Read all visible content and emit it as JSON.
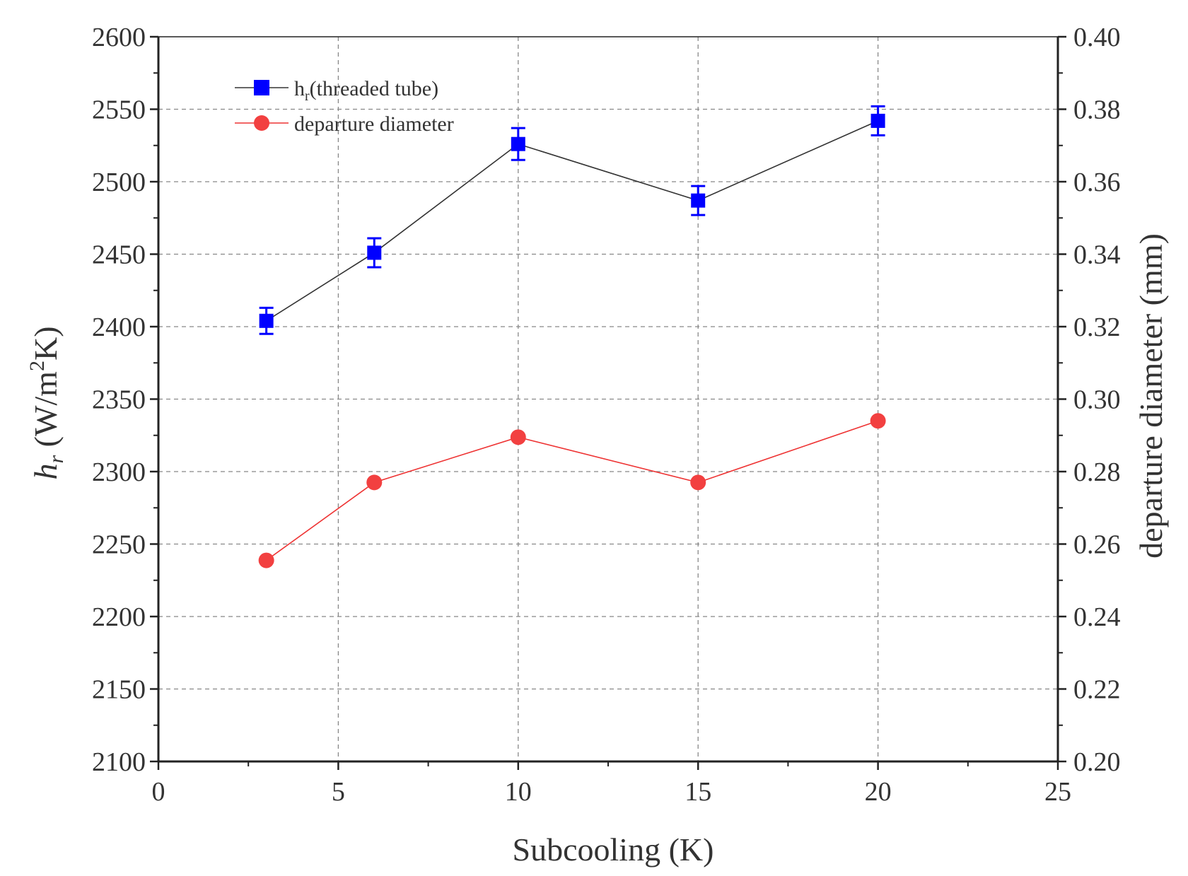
{
  "chart_data": {
    "type": "line",
    "xlabel": "Subcooling (K)",
    "ylabel": {
      "main": "h",
      "sub": "r",
      "unit_pre": " (W/m",
      "sup": "2",
      "unit_post": "K)"
    },
    "y2label": "departure diameter (mm)",
    "xlim": [
      0,
      25
    ],
    "ylim": [
      2100,
      2600
    ],
    "y2lim": [
      0.2,
      0.4
    ],
    "grid": true,
    "legend_position": "top-left",
    "x_ticks": [
      "0",
      "5",
      "10",
      "15",
      "20",
      "25"
    ],
    "y_ticks": [
      "2100",
      "2150",
      "2200",
      "2250",
      "2300",
      "2350",
      "2400",
      "2450",
      "2500",
      "2550",
      "2600"
    ],
    "y2_ticks": [
      "0.20",
      "0.22",
      "0.24",
      "0.26",
      "0.28",
      "0.30",
      "0.32",
      "0.34",
      "0.36",
      "0.38",
      "0.40"
    ],
    "x": [
      3,
      6,
      10,
      15,
      20
    ],
    "series": [
      {
        "name_main": "h",
        "name_sub": "r",
        "name_rest": "(threaded tube)",
        "axis": "left",
        "values": [
          2404,
          2451,
          2526,
          2487,
          2542
        ],
        "errors": [
          9,
          10,
          11,
          10,
          10
        ],
        "color": "#0000ff",
        "line_color": "#333333",
        "marker": "square"
      },
      {
        "name": "departure diameter",
        "axis": "right",
        "values": [
          0.2555,
          0.277,
          0.2895,
          0.277,
          0.294
        ],
        "color": "#f24040",
        "line_color": "#ee3333",
        "marker": "circle"
      }
    ]
  }
}
